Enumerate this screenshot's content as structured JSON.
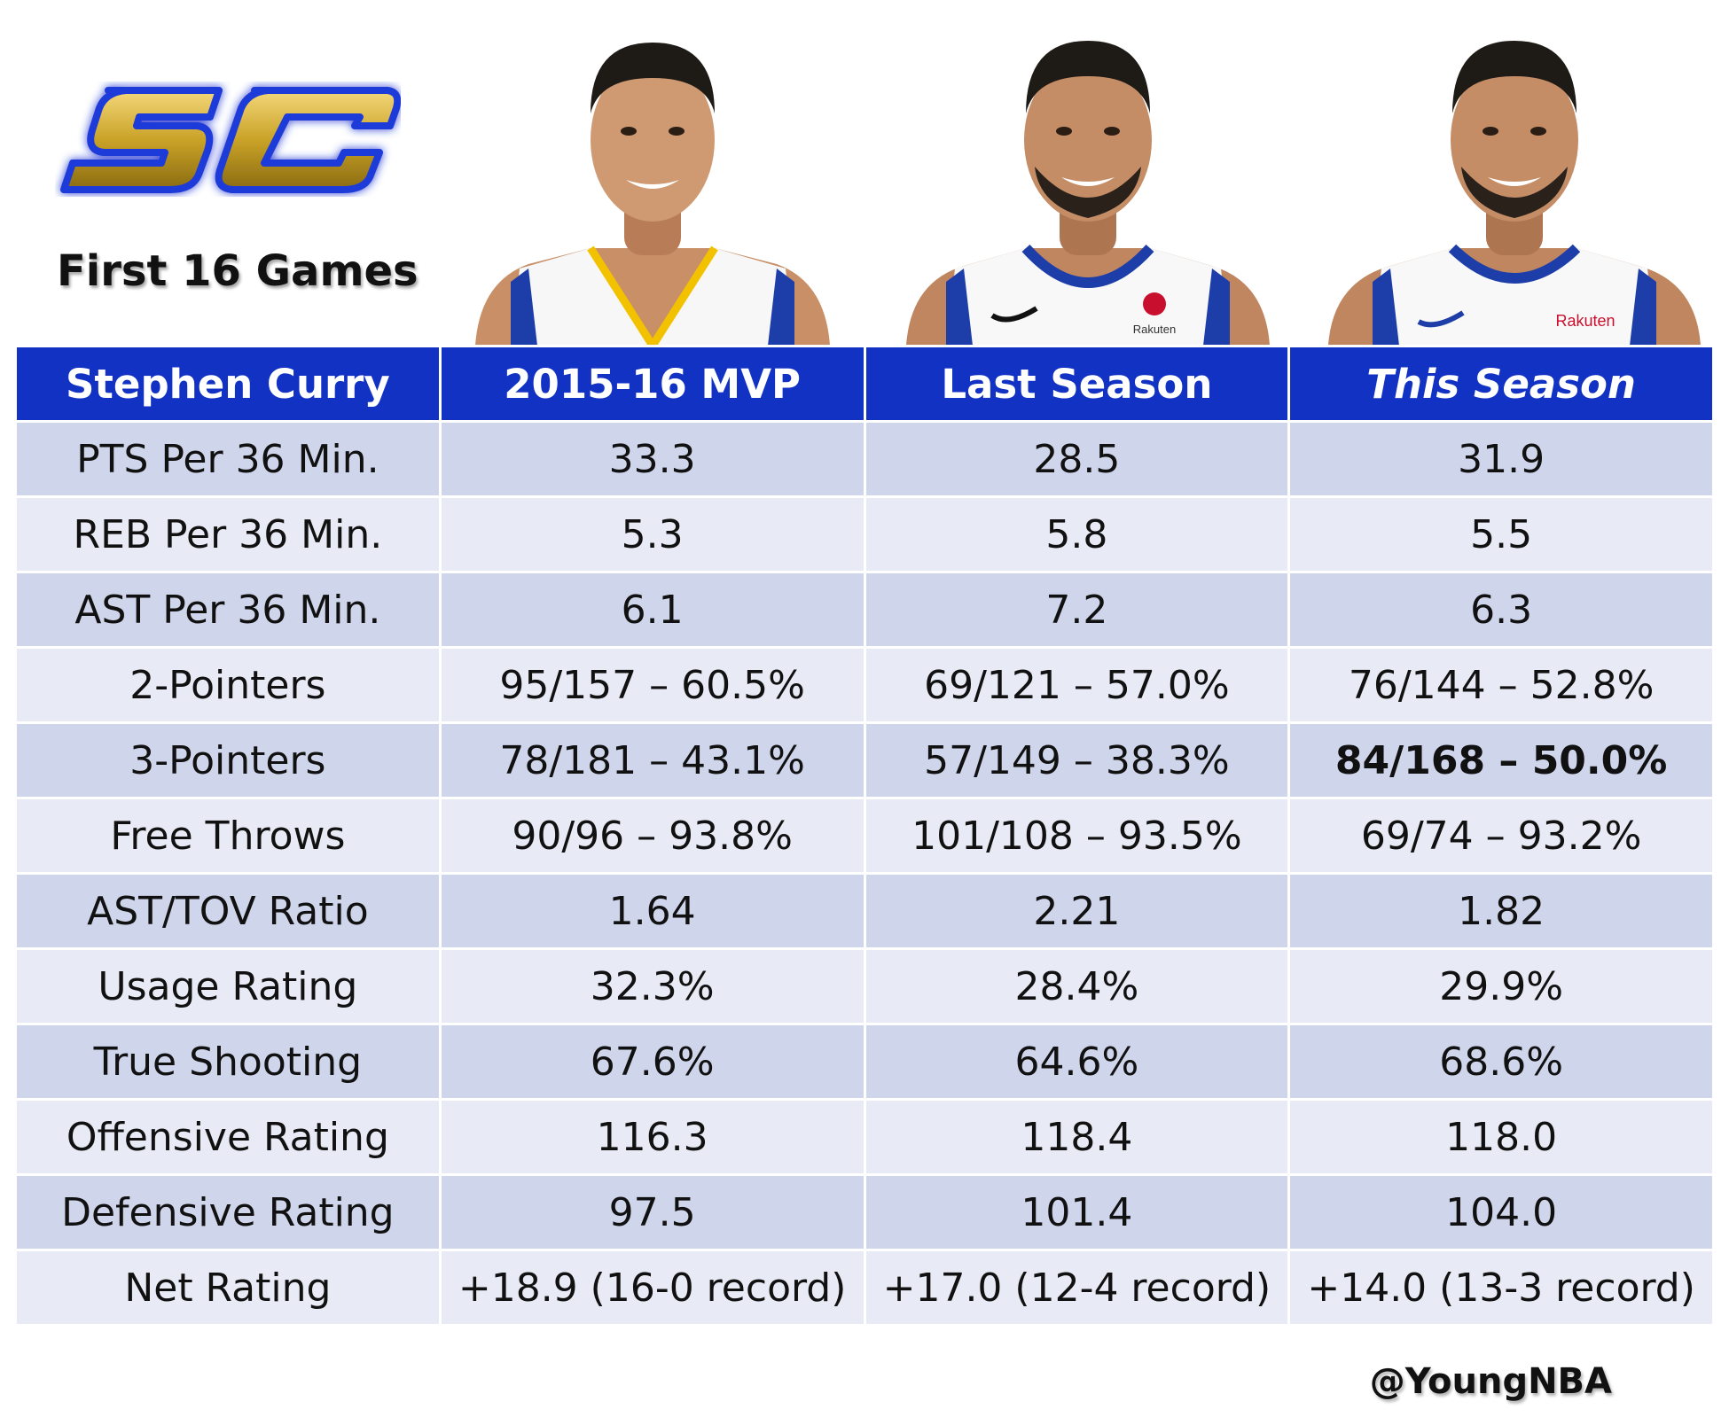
{
  "logo": {
    "text": "SC",
    "icon": "sc30-logo"
  },
  "subtitle": "First 16 Games",
  "portraits": [
    {
      "alt": "Stephen Curry 2015-16",
      "jersey_sponsor": ""
    },
    {
      "alt": "Stephen Curry last season",
      "jersey_sponsor": "Rakuten"
    },
    {
      "alt": "Stephen Curry this season",
      "jersey_sponsor": "Rakuten"
    }
  ],
  "chart_data": {
    "type": "table",
    "headers": [
      "Stephen Curry",
      "2015-16 MVP",
      "Last Season",
      "This Season"
    ],
    "rows": [
      [
        "PTS Per 36 Min.",
        "33.3",
        "28.5",
        "31.9"
      ],
      [
        "REB Per 36 Min.",
        "5.3",
        "5.8",
        "5.5"
      ],
      [
        "AST Per 36 Min.",
        "6.1",
        "7.2",
        "6.3"
      ],
      [
        "2-Pointers",
        "95/157 – 60.5%",
        "69/121 – 57.0%",
        "76/144 – 52.8%"
      ],
      [
        "3-Pointers",
        "78/181 – 43.1%",
        "57/149 – 38.3%",
        "84/168 – 50.0%"
      ],
      [
        "Free Throws",
        "90/96 – 93.8%",
        "101/108 – 93.5%",
        "69/74 – 93.2%"
      ],
      [
        "AST/TOV Ratio",
        "1.64",
        "2.21",
        "1.82"
      ],
      [
        "Usage Rating",
        "32.3%",
        "28.4%",
        "29.9%"
      ],
      [
        "True Shooting",
        "67.6%",
        "64.6%",
        "68.6%"
      ],
      [
        "Offensive Rating",
        "116.3",
        "118.4",
        "118.0"
      ],
      [
        "Defensive Rating",
        "97.5",
        "101.4",
        "104.0"
      ],
      [
        "Net Rating",
        "+18.9 (16-0 record)",
        "+17.0 (12-4 record)",
        "+14.0 (13-3 record)"
      ]
    ],
    "highlight": {
      "row": 4,
      "col": 3,
      "style": "bold"
    },
    "header_italic_col": 3
  },
  "colors": {
    "header_bg": "#1232c4",
    "row_odd": "#cfd5eb",
    "row_even": "#e8ebf5",
    "logo_gold": "#c9a227",
    "logo_blue": "#1a3ad8"
  },
  "footer": {
    "handle": "@YoungNBA"
  }
}
